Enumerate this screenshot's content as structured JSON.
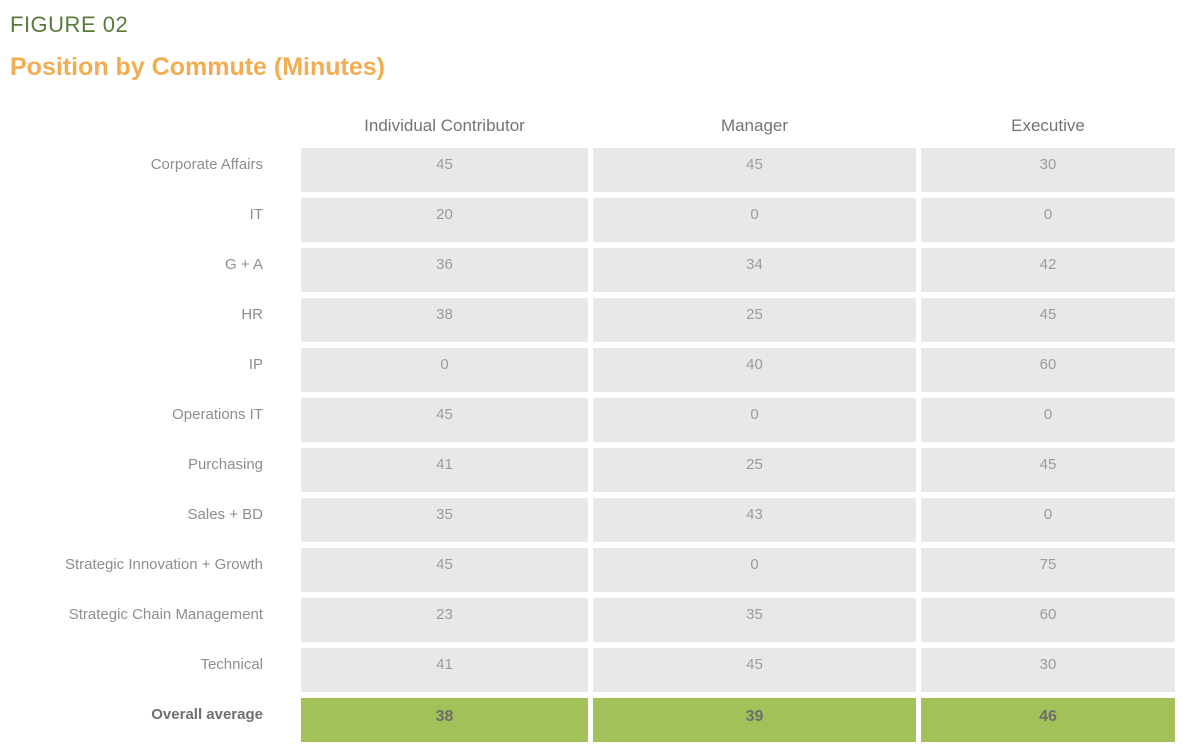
{
  "figure": {
    "label": "FIGURE 02",
    "title": "Position by Commute (Minutes)"
  },
  "colors": {
    "figure_label_green": "#5A7A3C",
    "title_orange": "#F2AD52",
    "cell_background": "#E8E8E8",
    "cell_text": "#9B9B9B",
    "header_text": "#747474",
    "row_label_text": "#8E8E8E",
    "average_row_background": "#A3C159",
    "average_row_text": "#6E6E6E"
  },
  "chart_data": {
    "type": "table",
    "figure_label": "FIGURE 02",
    "title": "Position by Commute (Minutes)",
    "unit": "minutes",
    "columns": [
      "Individual Contributor",
      "Manager",
      "Executive"
    ],
    "rows": [
      {
        "label": "Corporate Affairs",
        "values": [
          45,
          45,
          30
        ]
      },
      {
        "label": "IT",
        "values": [
          20,
          0,
          0
        ]
      },
      {
        "label": "G + A",
        "values": [
          36,
          34,
          42
        ]
      },
      {
        "label": "HR",
        "values": [
          38,
          25,
          45
        ]
      },
      {
        "label": "IP",
        "values": [
          0,
          40,
          60
        ]
      },
      {
        "label": "Operations IT",
        "values": [
          45,
          0,
          0
        ]
      },
      {
        "label": "Purchasing",
        "values": [
          41,
          25,
          45
        ]
      },
      {
        "label": "Sales + BD",
        "values": [
          35,
          43,
          0
        ]
      },
      {
        "label": "Strategic Innovation + Growth",
        "values": [
          45,
          0,
          75
        ]
      },
      {
        "label": "Strategic Chain Management",
        "values": [
          23,
          35,
          60
        ]
      },
      {
        "label": "Technical",
        "values": [
          41,
          45,
          30
        ]
      }
    ],
    "summary_row": {
      "label": "Overall average",
      "values": [
        38,
        39,
        46
      ]
    }
  }
}
